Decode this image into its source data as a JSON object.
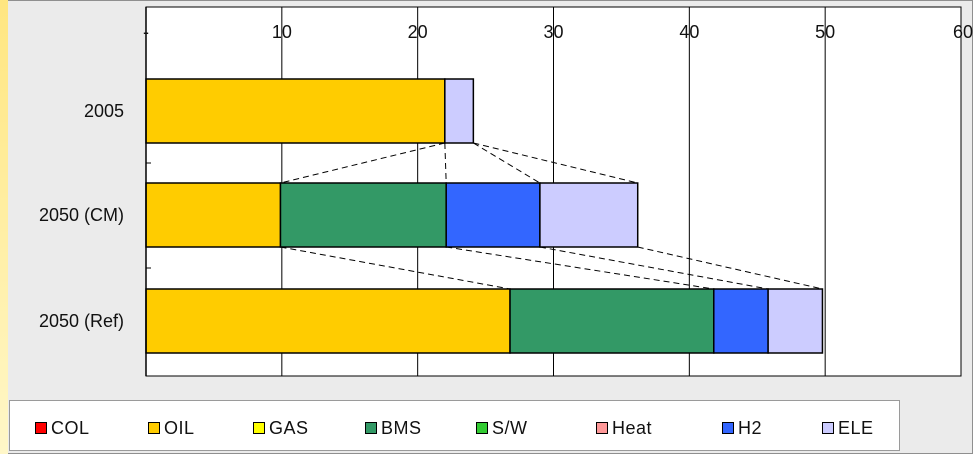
{
  "chart_data": {
    "type": "bar",
    "orientation": "horizontal",
    "stacked": true,
    "x_tick_labels": [
      "-",
      "10",
      "20",
      "30",
      "40",
      "50",
      "60"
    ],
    "xlim": [
      0,
      60
    ],
    "grid": true,
    "categories": [
      "2005",
      "2050 (CM)",
      "2050 (Ref)"
    ],
    "series": [
      {
        "name": "COL",
        "color": "#ff0000",
        "values": [
          0,
          0,
          0
        ]
      },
      {
        "name": "OIL",
        "color": "#ffcc00",
        "values": [
          22.0,
          9.9,
          26.8
        ]
      },
      {
        "name": "GAS",
        "color": "#ffff00",
        "values": [
          0,
          0,
          0
        ]
      },
      {
        "name": "BMS",
        "color": "#339966",
        "values": [
          0,
          12.2,
          15.0
        ]
      },
      {
        "name": "S/W",
        "color": "#33cc33",
        "values": [
          0,
          0,
          0
        ]
      },
      {
        "name": "Heat",
        "color": "#ff9999",
        "values": [
          0,
          0,
          0
        ]
      },
      {
        "name": "H2",
        "color": "#3366ff",
        "values": [
          0,
          6.9,
          4.0
        ]
      },
      {
        "name": "ELE",
        "color": "#ccccff",
        "values": [
          2.1,
          7.2,
          4.0
        ]
      }
    ],
    "legend_position": "bottom"
  }
}
